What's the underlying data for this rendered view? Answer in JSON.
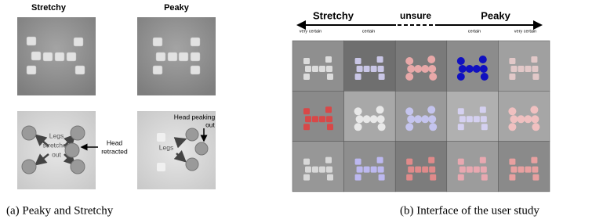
{
  "panel_a": {
    "titles": [
      "Stretchy",
      "Peaky"
    ],
    "annotations": {
      "legs_stretched_out": [
        "Legs",
        "stretched",
        "out"
      ],
      "head_retracted": [
        "Head",
        "retracted"
      ],
      "legs": "Legs",
      "head_peaking_out": [
        "Head peaking",
        "out"
      ]
    },
    "caption": "(a) Peaky and Stretchy"
  },
  "panel_b": {
    "scale": {
      "left": "Stretchy",
      "middle": "unsure",
      "right": "Peaky",
      "ticks": [
        "very certain",
        "certain",
        "certain",
        "very certain"
      ]
    },
    "caption": "(b) Interface of the user study"
  }
}
